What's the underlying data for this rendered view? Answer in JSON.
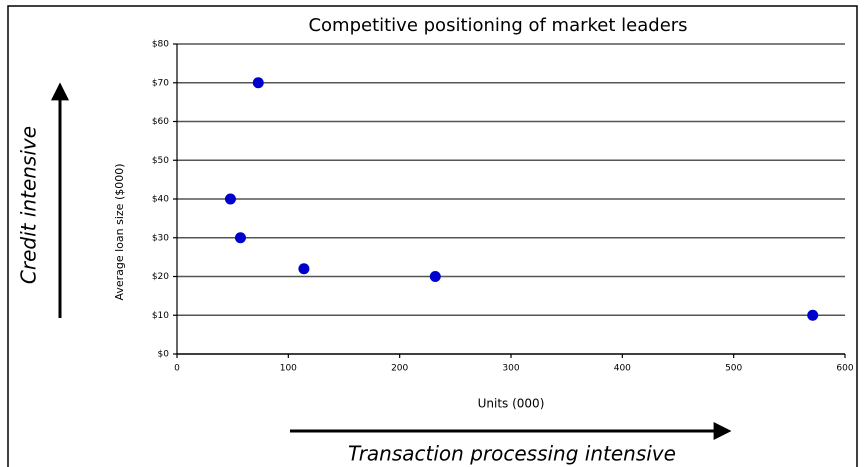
{
  "chart_data": {
    "type": "scatter",
    "title": "Competitive positioning of market leaders",
    "x_label": "Units (000)",
    "y_label": "Average loan size ($000)",
    "annotations": [
      "Credit intensive",
      "Transaction processing intensive"
    ],
    "x": [
      73,
      48,
      57,
      114,
      232,
      571
    ],
    "values": [
      70,
      40,
      30,
      22,
      20,
      10
    ],
    "color": "#0000cc",
    "xlim": [
      0,
      600
    ],
    "xticks": [
      0,
      100,
      200,
      300,
      400,
      500,
      600
    ],
    "ylim": [
      0,
      80
    ],
    "yticks": [
      {
        "value": 0,
        "label": "$0"
      },
      {
        "value": 10,
        "label": "$10"
      },
      {
        "value": 20,
        "label": "$20"
      },
      {
        "value": 30,
        "label": "$30"
      },
      {
        "value": 40,
        "label": "$40"
      },
      {
        "value": 50,
        "label": "$50"
      },
      {
        "value": 60,
        "label": "$60"
      },
      {
        "value": 70,
        "label": "$70"
      },
      {
        "value": 80,
        "label": "$80"
      }
    ],
    "grid": true
  }
}
